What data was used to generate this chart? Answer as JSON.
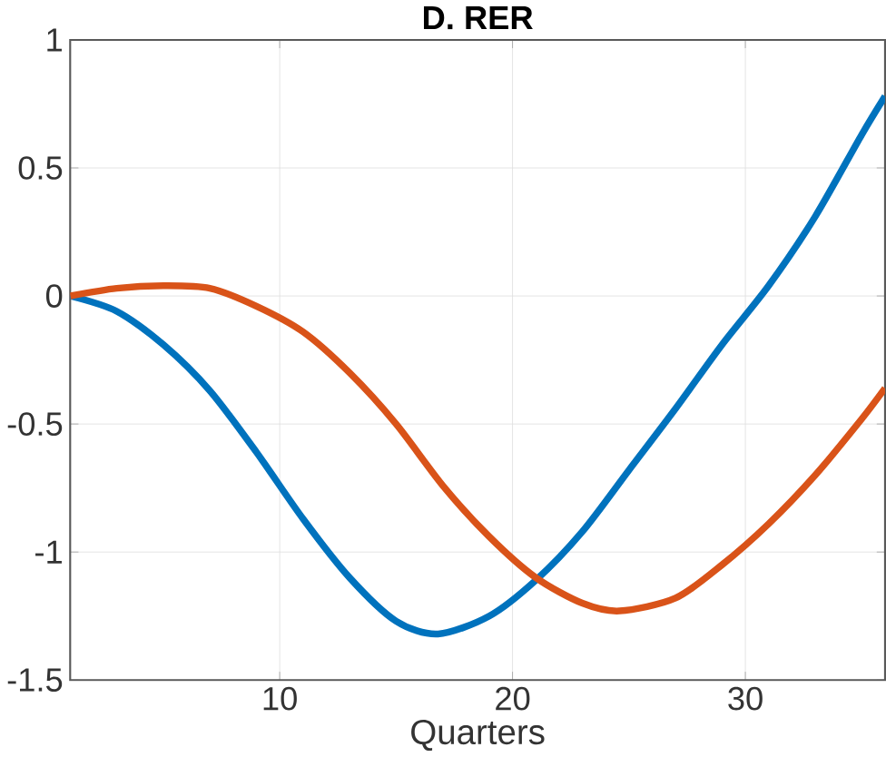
{
  "chart_data": {
    "type": "line",
    "title": "D. RER",
    "xlabel": "Quarters",
    "xlim": [
      1,
      36
    ],
    "ylim": [
      -1.5,
      1
    ],
    "xticks": [
      10,
      20,
      30
    ],
    "yticks": [
      -1.5,
      -1,
      -0.5,
      0,
      0.5,
      1
    ],
    "grid": true,
    "line_style": "solid",
    "marker": "none",
    "series": [
      {
        "color": "#0072bd",
        "x": [
          1,
          3,
          5,
          7,
          9,
          11,
          13,
          15,
          16.8,
          19,
          21,
          23,
          25,
          27,
          29,
          31,
          33,
          35,
          36
        ],
        "values": [
          0,
          -0.06,
          -0.19,
          -0.37,
          -0.61,
          -0.87,
          -1.1,
          -1.27,
          -1.32,
          -1.25,
          -1.11,
          -0.92,
          -0.68,
          -0.44,
          -0.19,
          0.04,
          0.31,
          0.63,
          0.78
        ]
      },
      {
        "color": "#d95319",
        "x": [
          1,
          3,
          5,
          7,
          9,
          11,
          13,
          15,
          17,
          19,
          21,
          23,
          24.6,
          27,
          29,
          31,
          33,
          35,
          36
        ],
        "values": [
          0,
          0.03,
          0.04,
          0.03,
          -0.04,
          -0.14,
          -0.3,
          -0.5,
          -0.74,
          -0.94,
          -1.1,
          -1.2,
          -1.23,
          -1.18,
          -1.05,
          -0.89,
          -0.7,
          -0.48,
          -0.36
        ]
      }
    ]
  }
}
